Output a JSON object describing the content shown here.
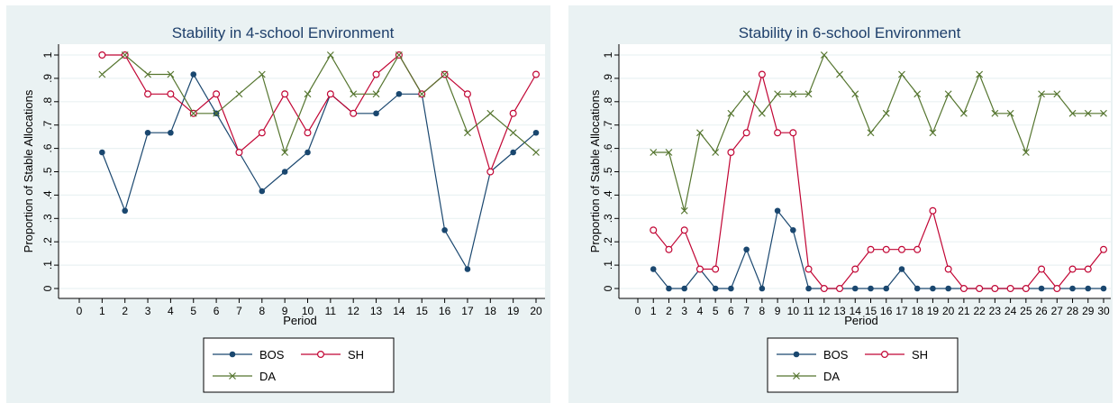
{
  "chart_data": [
    {
      "type": "line",
      "title": "Stability in 4-school Environment",
      "xlabel": "Period",
      "ylabel": "Proportion of Stable Allocations",
      "xlim": [
        0,
        20
      ],
      "ylim": [
        0,
        1
      ],
      "x_ticks": [
        0,
        1,
        2,
        3,
        4,
        5,
        6,
        7,
        8,
        9,
        10,
        11,
        12,
        13,
        14,
        15,
        16,
        17,
        18,
        19,
        20
      ],
      "y_ticks": [
        "0",
        ".1",
        ".2",
        ".3",
        ".4",
        ".5",
        ".6",
        ".7",
        ".8",
        ".9",
        "1"
      ],
      "grid": "horizontal",
      "legend_position": "bottom",
      "x": [
        1,
        2,
        3,
        4,
        5,
        6,
        7,
        8,
        9,
        10,
        11,
        12,
        13,
        14,
        15,
        16,
        17,
        18,
        19,
        20
      ],
      "series": [
        {
          "name": "BOS",
          "color": "#1a476f",
          "marker": "filled-circle",
          "values": [
            0.583,
            0.333,
            0.667,
            0.667,
            0.917,
            0.75,
            0.583,
            0.417,
            0.5,
            0.583,
            0.833,
            0.75,
            0.75,
            0.833,
            0.833,
            0.25,
            0.083,
            0.5,
            0.583,
            0.667
          ]
        },
        {
          "name": "SH",
          "color": "#c10534",
          "marker": "hollow-circle",
          "values": [
            1,
            1,
            0.833,
            0.833,
            0.75,
            0.833,
            0.583,
            0.667,
            0.833,
            0.667,
            0.833,
            0.75,
            0.917,
            1,
            0.833,
            0.917,
            0.833,
            0.5,
            0.75,
            0.917
          ]
        },
        {
          "name": "DA",
          "color": "#55752f",
          "marker": "x",
          "values": [
            0.917,
            1,
            0.917,
            0.917,
            0.75,
            0.75,
            0.833,
            0.917,
            0.583,
            0.833,
            1,
            0.833,
            0.833,
            1,
            0.833,
            0.917,
            0.667,
            0.75,
            0.667,
            0.583
          ]
        }
      ]
    },
    {
      "type": "line",
      "title": "Stability in 6-school Environment",
      "xlabel": "Period",
      "ylabel": "Proportion of Stable Allocations",
      "xlim": [
        0,
        30
      ],
      "ylim": [
        0,
        1
      ],
      "x_ticks": [
        0,
        1,
        2,
        3,
        4,
        5,
        6,
        7,
        8,
        9,
        10,
        11,
        12,
        13,
        14,
        15,
        16,
        17,
        18,
        19,
        20,
        21,
        22,
        23,
        24,
        25,
        26,
        27,
        28,
        29,
        30
      ],
      "y_ticks": [
        "0",
        ".1",
        ".2",
        ".3",
        ".4",
        ".5",
        ".6",
        ".7",
        ".8",
        ".9",
        "1"
      ],
      "grid": "horizontal",
      "legend_position": "bottom",
      "x": [
        1,
        2,
        3,
        4,
        5,
        6,
        7,
        8,
        9,
        10,
        11,
        12,
        13,
        14,
        15,
        16,
        17,
        18,
        19,
        20,
        21,
        22,
        23,
        24,
        25,
        26,
        27,
        28,
        29,
        30
      ],
      "series": [
        {
          "name": "BOS",
          "color": "#1a476f",
          "marker": "filled-circle",
          "values": [
            0.083,
            0,
            0,
            0.083,
            0,
            0,
            0.167,
            0,
            0.333,
            0.25,
            0,
            0,
            0,
            0,
            0,
            0,
            0.083,
            0,
            0,
            0,
            0,
            0,
            0,
            0,
            0,
            0,
            0,
            0,
            0,
            0
          ]
        },
        {
          "name": "SH",
          "color": "#c10534",
          "marker": "hollow-circle",
          "values": [
            0.25,
            0.167,
            0.25,
            0.083,
            0.083,
            0.583,
            0.667,
            0.917,
            0.667,
            0.667,
            0.083,
            0,
            0,
            0.083,
            0.167,
            0.167,
            0.167,
            0.167,
            0.333,
            0.083,
            0,
            0,
            0,
            0,
            0,
            0.083,
            0,
            0.083,
            0.083,
            0.167
          ]
        },
        {
          "name": "DA",
          "color": "#55752f",
          "marker": "x",
          "values": [
            0.583,
            0.583,
            0.333,
            0.667,
            0.583,
            0.75,
            0.833,
            0.75,
            0.833,
            0.833,
            0.833,
            1,
            0.917,
            0.833,
            0.667,
            0.75,
            0.917,
            0.833,
            0.667,
            0.833,
            0.75,
            0.917,
            0.75,
            0.75,
            0.583,
            0.833,
            0.833,
            0.75,
            0.75,
            0.75
          ]
        }
      ]
    }
  ]
}
